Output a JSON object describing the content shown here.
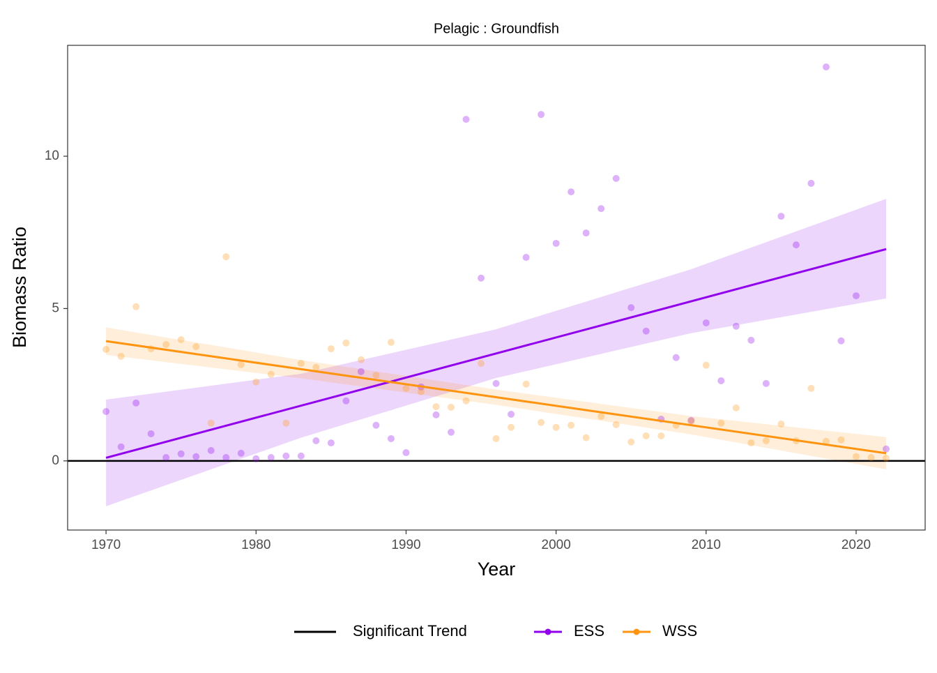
{
  "chart_data": {
    "type": "scatter",
    "title": "Pelagic : Groundfish",
    "xlabel": "Year",
    "ylabel": "Biomass Ratio",
    "x": [
      1970,
      1971,
      1972,
      1973,
      1974,
      1975,
      1976,
      1977,
      1978,
      1979,
      1980,
      1981,
      1982,
      1983,
      1984,
      1985,
      1986,
      1987,
      1988,
      1989,
      1990,
      1991,
      1992,
      1993,
      1994,
      1995,
      1996,
      1997,
      1998,
      1999,
      2000,
      2001,
      2002,
      2003,
      2004,
      2005,
      2006,
      2007,
      2008,
      2009,
      2010,
      2011,
      2012,
      2013,
      2014,
      2015,
      2016,
      2017,
      2018,
      2019,
      2020,
      2021,
      2022
    ],
    "series": [
      {
        "name": "ESS",
        "color": "#9000ee",
        "values": [
          1.62,
          0.46,
          1.9,
          0.89,
          0.11,
          0.23,
          0.14,
          0.34,
          0.11,
          0.25,
          0.07,
          0.11,
          0.16,
          0.16,
          0.66,
          0.59,
          1.97,
          2.93,
          1.17,
          0.73,
          0.27,
          2.43,
          1.51,
          0.94,
          11.21,
          6.0,
          2.54,
          1.53,
          6.68,
          11.37,
          7.14,
          8.83,
          7.48,
          8.28,
          9.27,
          5.03,
          4.26,
          1.37,
          3.39,
          1.33,
          4.53,
          2.63,
          4.42,
          3.96,
          2.54,
          8.03,
          7.09,
          9.11,
          12.93,
          3.94,
          5.42,
          null,
          0.39
        ],
        "trend": {
          "x": [
            1970,
            2022
          ],
          "values": [
            0.1,
            6.95
          ]
        },
        "band": {
          "x": [
            1970,
            1983,
            1996,
            2009,
            2022
          ],
          "lower": [
            -1.49,
            0.76,
            2.72,
            4.19,
            5.33
          ],
          "upper": [
            2.01,
            2.86,
            4.32,
            6.29,
            8.6
          ]
        }
      },
      {
        "name": "WSS",
        "color": "#ff9410",
        "values": [
          3.66,
          3.43,
          5.06,
          3.68,
          3.82,
          3.98,
          3.75,
          1.24,
          6.7,
          3.16,
          2.59,
          2.84,
          1.24,
          3.2,
          3.07,
          3.68,
          3.87,
          3.32,
          2.81,
          3.89,
          2.38,
          2.27,
          1.78,
          1.76,
          1.97,
          3.2,
          0.73,
          1.1,
          2.52,
          1.26,
          1.1,
          1.17,
          0.76,
          1.46,
          1.19,
          0.62,
          0.82,
          0.82,
          1.17,
          1.3,
          3.14,
          1.24,
          1.74,
          0.59,
          0.66,
          1.21,
          0.66,
          2.38,
          0.64,
          0.69,
          0.14,
          0.11,
          0.09
        ],
        "trend": {
          "x": [
            1970,
            2022
          ],
          "values": [
            3.93,
            0.25
          ]
        },
        "band": {
          "x": [
            1970,
            1983,
            1996,
            2009,
            2022
          ],
          "lower": [
            3.48,
            2.71,
            1.84,
            0.87,
            -0.28
          ],
          "upper": [
            4.38,
            3.31,
            2.34,
            1.47,
            0.78
          ]
        }
      }
    ],
    "reference_line": {
      "name": "Significant Trend",
      "value": 0,
      "color": "#000000"
    },
    "xlim": [
      1967.44,
      2024.6
    ],
    "ylim": [
      -2.27,
      13.64
    ],
    "xticks": [
      1970,
      1980,
      1990,
      2000,
      2010,
      2020
    ],
    "yticks": [
      0,
      5,
      10
    ],
    "grid": false,
    "legend": "bottom"
  }
}
